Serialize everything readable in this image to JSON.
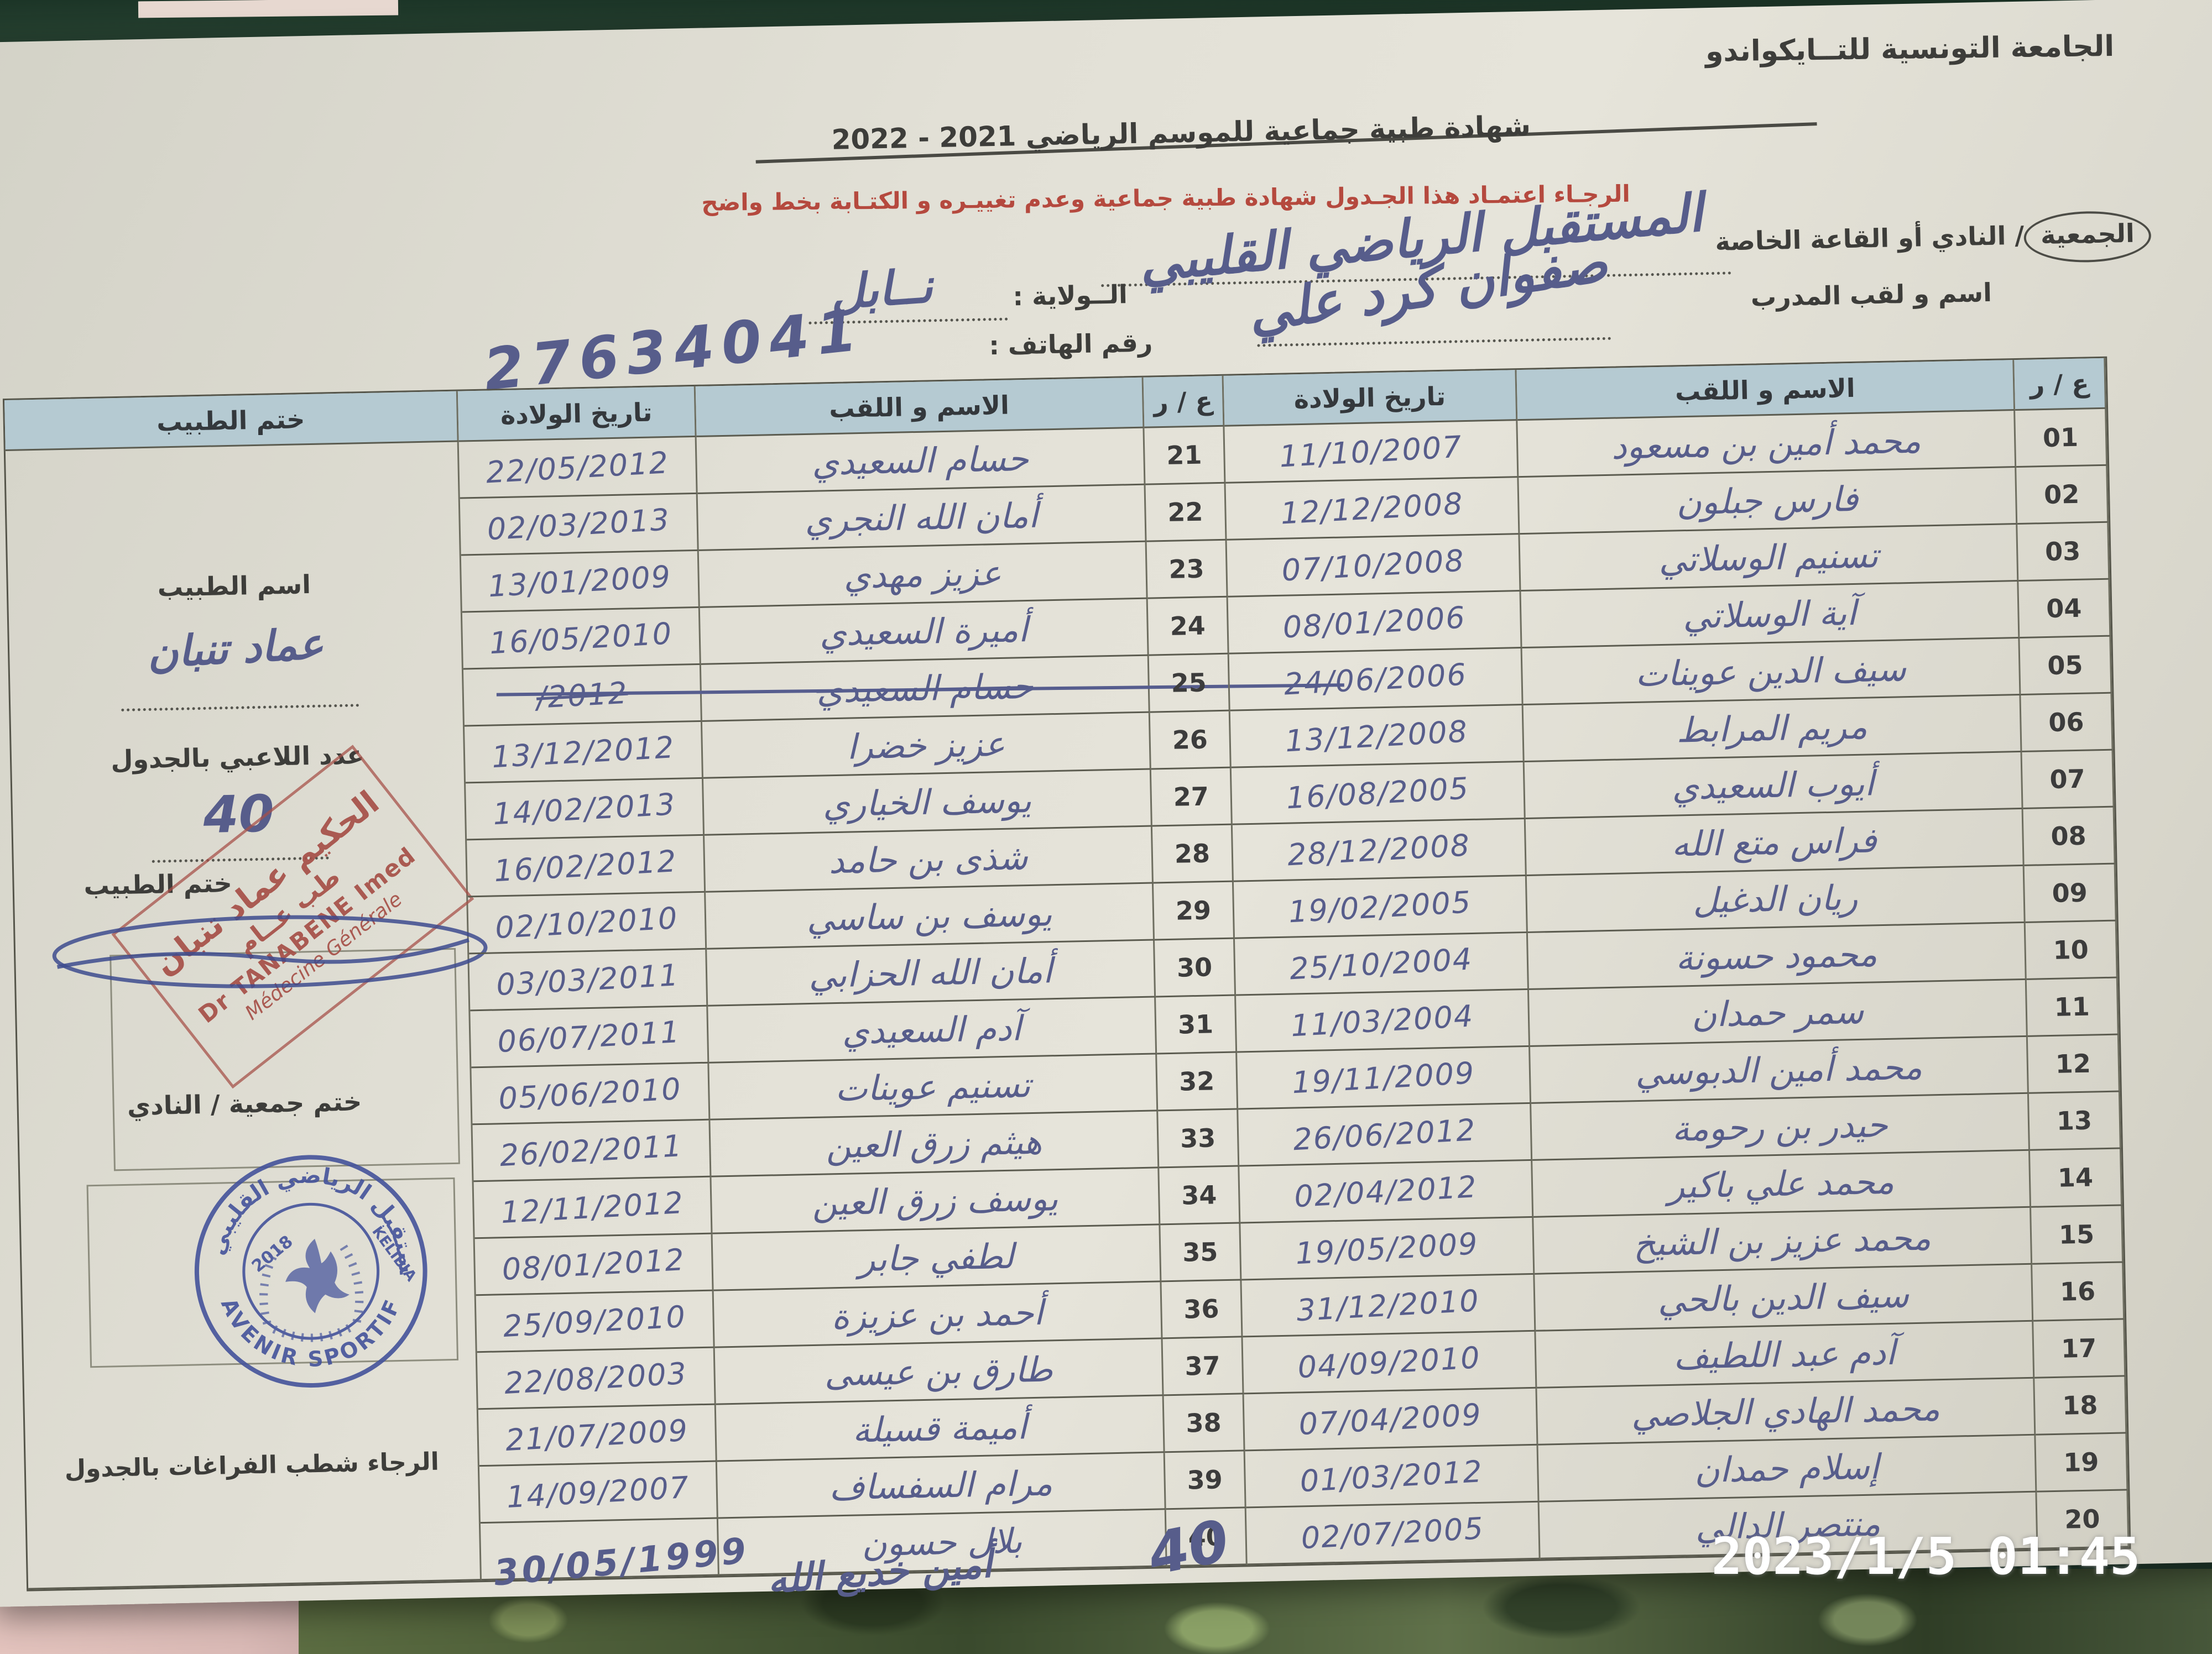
{
  "photo": {
    "timestamp": "2023/1/5 01:45"
  },
  "page": {
    "federation": "الجامعة التونسية للتــايكواندو",
    "title": "شهادة طبية جماعية  للموسم الرياضي  2021 ‏-‏ 2022",
    "notice": "الرجـاء اعتمـاد هذا الجـدول  شهادة طبية جماعية وعدم تغييـره و الكتـابة بخط واضح",
    "fields": {
      "club_label_circled": "الجمعية",
      "club_label_rest": "/ النادي أو القاعة الخاصة",
      "club_value": "المستقبل الرياضي القليبي",
      "coach_label": "اسم و لقب المدرب",
      "coach_value": "صفوان كرد علي",
      "wilaya_label": "الــولاية :",
      "wilaya_value": "نــابل",
      "phone_label": "رقم الهاتف :",
      "phone_value": "27634041"
    },
    "table": {
      "header": {
        "num": "ع / ر",
        "name": "الاسم و اللقب",
        "dob": "تاريخ الولادة",
        "doctor_stamp": "ختم الطبيب"
      },
      "rows_right": [
        {
          "num": "01",
          "name": "محمد أمين بن مسعود",
          "dob": "11/10/2007"
        },
        {
          "num": "02",
          "name": "فارس جبلون",
          "dob": "12/12/2008"
        },
        {
          "num": "03",
          "name": "تسنيم الوسلاتي",
          "dob": "07/10/2008"
        },
        {
          "num": "04",
          "name": "آية الوسلاتي",
          "dob": "08/01/2006"
        },
        {
          "num": "05",
          "name": "سيف الدين عوينات",
          "dob": "24/06/2006"
        },
        {
          "num": "06",
          "name": "مريم المرابط",
          "dob": "13/12/2008"
        },
        {
          "num": "07",
          "name": "أيوب السعيدي",
          "dob": "16/08/2005"
        },
        {
          "num": "08",
          "name": "فراس متع الله",
          "dob": "28/12/2008"
        },
        {
          "num": "09",
          "name": "ريان الدغيل",
          "dob": "19/02/2005"
        },
        {
          "num": "10",
          "name": "محمود حسونة",
          "dob": "25/10/2004"
        },
        {
          "num": "11",
          "name": "سمر حمدان",
          "dob": "11/03/2004"
        },
        {
          "num": "12",
          "name": "محمد أمين الدبوسي",
          "dob": "19/11/2009"
        },
        {
          "num": "13",
          "name": "حيدر بن رحومة",
          "dob": "26/06/2012"
        },
        {
          "num": "14",
          "name": "محمد علي باكير",
          "dob": "02/04/2012"
        },
        {
          "num": "15",
          "name": "محمد عزيز بن الشيخ",
          "dob": "19/05/2009"
        },
        {
          "num": "16",
          "name": "سيف الدين بالحي",
          "dob": "31/12/2010"
        },
        {
          "num": "17",
          "name": "آدم عبد اللطيف",
          "dob": "04/09/2010"
        },
        {
          "num": "18",
          "name": "محمد الهادي الجلاصي",
          "dob": "07/04/2009"
        },
        {
          "num": "19",
          "name": "إسلام حمدان",
          "dob": "01/03/2012"
        },
        {
          "num": "20",
          "name": "منتصر الدالي",
          "dob": "02/07/2005"
        }
      ],
      "rows_left": [
        {
          "num": "21",
          "name": "حسام السعيدي",
          "dob": "22/05/2012"
        },
        {
          "num": "22",
          "name": "أمان الله النجري",
          "dob": "02/03/2013"
        },
        {
          "num": "23",
          "name": "عزيز مهدي",
          "dob": "13/01/2009"
        },
        {
          "num": "24",
          "name": "أميرة السعيدي",
          "dob": "16/05/2010"
        },
        {
          "num": "25",
          "name": "حسام السعيدي",
          "dob": "/2012",
          "crossed": true
        },
        {
          "num": "26",
          "name": "عزيز خضرا",
          "dob": "13/12/2012"
        },
        {
          "num": "27",
          "name": "يوسف الخياري",
          "dob": "14/02/2013"
        },
        {
          "num": "28",
          "name": "شذى بن حامد",
          "dob": "16/02/2012"
        },
        {
          "num": "29",
          "name": "يوسف بن ساسي",
          "dob": "02/10/2010"
        },
        {
          "num": "30",
          "name": "أمان الله الحزابي",
          "dob": "03/03/2011"
        },
        {
          "num": "31",
          "name": "آدم السعيدي",
          "dob": "06/07/2011"
        },
        {
          "num": "32",
          "name": "تسنيم عوينات",
          "dob": "05/06/2010"
        },
        {
          "num": "33",
          "name": "هيثم زرق العين",
          "dob": "26/02/2011"
        },
        {
          "num": "34",
          "name": "يوسف زرق العين",
          "dob": "12/11/2012"
        },
        {
          "num": "35",
          "name": "لطفي جابر",
          "dob": "08/01/2012"
        },
        {
          "num": "36",
          "name": "أحمد بن عزيزة",
          "dob": "25/09/2010"
        },
        {
          "num": "37",
          "name": "طارق بن عيسى",
          "dob": "22/08/2003"
        },
        {
          "num": "38",
          "name": "أميمة قسيلة",
          "dob": "21/07/2009"
        },
        {
          "num": "39",
          "name": "مرام السفساف",
          "dob": "14/09/2007"
        },
        {
          "num": "40",
          "name": "بلال حسون",
          "dob": ""
        }
      ]
    },
    "doctor_panel": {
      "doctor_name_label": "اسم الطبيب",
      "doctor_name_value": "عماد تنبان",
      "players_count_label": "عدد اللاعبي بالجدول",
      "players_count_value": "40",
      "doctor_stamp_label": "ختم الطبيب",
      "red_stamp": {
        "line1": "الحكيم عماد تنبان",
        "line2": "طب عــام",
        "line3": "Dr TANABENE Imed",
        "line4": "Médecine Générale"
      },
      "club_stamp_label": "ختم جمعية / النادي",
      "club_stamp": {
        "arabic": "المستقبل الرياضي القليبي",
        "latin": "AVENIR SPORTIF",
        "city": "KELIBIA",
        "year": "2018"
      },
      "note": "الرجاء شطب  الفراغات بالجدول"
    },
    "footer": {
      "extra_date": "30/05/1999",
      "extra_name": "أمين خديع الله",
      "extra_num": "40"
    }
  }
}
